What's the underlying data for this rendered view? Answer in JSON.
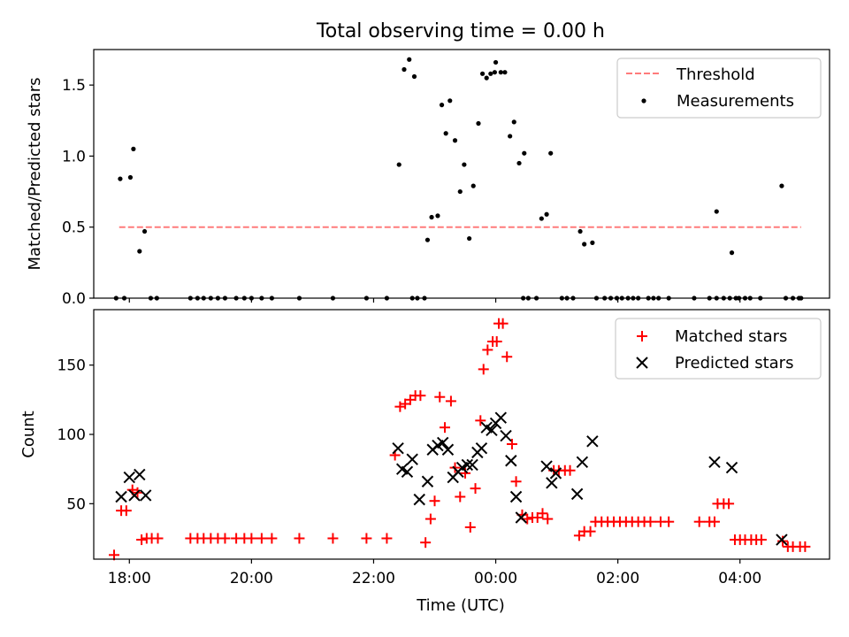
{
  "figure": {
    "title": "Total observing time = 0.00 h"
  },
  "chart_data": [
    {
      "type": "scatter",
      "ylabel": "Matched/Predicted stars",
      "xlabel": "",
      "xlim": [
        "17:25",
        "05:28"
      ],
      "ylim": [
        0,
        1.75
      ],
      "yticks": [
        0,
        0.5,
        1.0,
        1.5
      ],
      "ytick_labels": [
        "0.0",
        "0.5",
        "1.0",
        "1.5"
      ],
      "legend": {
        "position": "upper right",
        "entries": [
          "Threshold",
          "Measurements"
        ]
      },
      "threshold": {
        "name": "Threshold",
        "value": 0.5,
        "x_start": "17:50",
        "x_end": "05:00",
        "color": "#ff7b7b",
        "style": "dashed"
      },
      "series": [
        {
          "name": "Measurements",
          "color": "#000000",
          "marker": "dot",
          "points": [
            [
              "17:47",
              0
            ],
            [
              "17:51",
              0.84
            ],
            [
              "17:55",
              0
            ],
            [
              "18:01",
              0.85
            ],
            [
              "18:04",
              1.05
            ],
            [
              "18:10",
              0.33
            ],
            [
              "18:15",
              0.47
            ],
            [
              "18:21",
              0
            ],
            [
              "18:27",
              0
            ],
            [
              "19:00",
              0
            ],
            [
              "19:07",
              0
            ],
            [
              "19:13",
              0
            ],
            [
              "19:20",
              0
            ],
            [
              "19:27",
              0
            ],
            [
              "19:34",
              0
            ],
            [
              "19:45",
              0
            ],
            [
              "19:53",
              0
            ],
            [
              "20:00",
              0
            ],
            [
              "20:10",
              0
            ],
            [
              "20:20",
              0
            ],
            [
              "20:47",
              0
            ],
            [
              "21:20",
              0
            ],
            [
              "21:53",
              0
            ],
            [
              "22:13",
              0
            ],
            [
              "22:25",
              0.94
            ],
            [
              "22:30",
              1.61
            ],
            [
              "22:35",
              1.68
            ],
            [
              "22:40",
              1.56
            ],
            [
              "22:38",
              0
            ],
            [
              "22:43",
              0
            ],
            [
              "22:50",
              0
            ],
            [
              "22:53",
              0.41
            ],
            [
              "22:57",
              0.57
            ],
            [
              "23:03",
              0.58
            ],
            [
              "23:07",
              1.36
            ],
            [
              "23:11",
              1.16
            ],
            [
              "23:15",
              1.39
            ],
            [
              "23:20",
              1.11
            ],
            [
              "23:25",
              0.75
            ],
            [
              "23:29",
              0.94
            ],
            [
              "23:34",
              0.42
            ],
            [
              "23:38",
              0.79
            ],
            [
              "23:43",
              1.23
            ],
            [
              "23:47",
              1.58
            ],
            [
              "23:51",
              1.55
            ],
            [
              "23:55",
              1.58
            ],
            [
              "23:59",
              1.59
            ],
            [
              "00:00",
              1.66
            ],
            [
              "00:05",
              1.59
            ],
            [
              "00:09",
              1.59
            ],
            [
              "00:14",
              1.14
            ],
            [
              "00:18",
              1.24
            ],
            [
              "00:23",
              0.95
            ],
            [
              "00:28",
              1.02
            ],
            [
              "00:27",
              0
            ],
            [
              "00:32",
              0
            ],
            [
              "00:40",
              0
            ],
            [
              "00:45",
              0.56
            ],
            [
              "00:50",
              0.59
            ],
            [
              "00:54",
              1.02
            ],
            [
              "01:05",
              0
            ],
            [
              "01:10",
              0
            ],
            [
              "01:16",
              0
            ],
            [
              "01:23",
              0.47
            ],
            [
              "01:27",
              0.38
            ],
            [
              "01:35",
              0.39
            ],
            [
              "01:39",
              0
            ],
            [
              "01:47",
              0
            ],
            [
              "01:53",
              0
            ],
            [
              "01:59",
              0
            ],
            [
              "02:04",
              0
            ],
            [
              "02:10",
              0
            ],
            [
              "02:15",
              0
            ],
            [
              "02:20",
              0
            ],
            [
              "02:30",
              0
            ],
            [
              "02:35",
              0
            ],
            [
              "02:40",
              0
            ],
            [
              "02:50",
              0
            ],
            [
              "03:15",
              0
            ],
            [
              "03:30",
              0
            ],
            [
              "03:37",
              0
            ],
            [
              "03:44",
              0
            ],
            [
              "03:50",
              0
            ],
            [
              "03:56",
              0
            ],
            [
              "03:59",
              0
            ],
            [
              "04:05",
              0
            ],
            [
              "04:10",
              0
            ],
            [
              "04:20",
              0
            ],
            [
              "03:37",
              0.61
            ],
            [
              "03:52",
              0.32
            ],
            [
              "04:45",
              0
            ],
            [
              "04:52",
              0
            ],
            [
              "04:58",
              0
            ],
            [
              "05:00",
              0
            ],
            [
              "04:41",
              0.79
            ]
          ]
        }
      ]
    },
    {
      "type": "scatter",
      "ylabel": "Count",
      "xlabel": "Time (UTC)",
      "xlim": [
        "17:25",
        "05:28"
      ],
      "ylim": [
        10,
        190
      ],
      "yticks": [
        50,
        100,
        150
      ],
      "xticks": [
        "18:00",
        "20:00",
        "22:00",
        "00:00",
        "02:00",
        "04:00"
      ],
      "legend": {
        "position": "upper right",
        "entries": [
          "Matched stars",
          "Predicted stars"
        ]
      },
      "series": [
        {
          "name": "Matched stars",
          "color": "#ff0000",
          "marker": "plus",
          "points": [
            [
              "17:45",
              13
            ],
            [
              "17:52",
              45
            ],
            [
              "17:57",
              45
            ],
            [
              "18:03",
              60
            ],
            [
              "18:08",
              58
            ],
            [
              "18:12",
              24
            ],
            [
              "18:17",
              25
            ],
            [
              "18:22",
              25
            ],
            [
              "18:28",
              25
            ],
            [
              "19:00",
              25
            ],
            [
              "19:07",
              25
            ],
            [
              "19:13",
              25
            ],
            [
              "19:20",
              25
            ],
            [
              "19:27",
              25
            ],
            [
              "19:34",
              25
            ],
            [
              "19:45",
              25
            ],
            [
              "19:53",
              25
            ],
            [
              "20:00",
              25
            ],
            [
              "20:10",
              25
            ],
            [
              "20:20",
              25
            ],
            [
              "20:47",
              25
            ],
            [
              "21:20",
              25
            ],
            [
              "21:53",
              25
            ],
            [
              "22:13",
              25
            ],
            [
              "22:21",
              85
            ],
            [
              "22:26",
              120
            ],
            [
              "22:31",
              122
            ],
            [
              "22:36",
              125
            ],
            [
              "22:41",
              128
            ],
            [
              "22:46",
              128
            ],
            [
              "22:51",
              22
            ],
            [
              "22:56",
              39
            ],
            [
              "23:00",
              52
            ],
            [
              "23:05",
              127
            ],
            [
              "23:10",
              105
            ],
            [
              "23:16",
              124
            ],
            [
              "23:20",
              76
            ],
            [
              "23:25",
              55
            ],
            [
              "23:30",
              72
            ],
            [
              "23:35",
              33
            ],
            [
              "23:40",
              61
            ],
            [
              "23:45",
              110
            ],
            [
              "23:48",
              147
            ],
            [
              "23:52",
              161
            ],
            [
              "23:57",
              167
            ],
            [
              "00:01",
              167
            ],
            [
              "00:03",
              180
            ],
            [
              "00:07",
              180
            ],
            [
              "00:11",
              156
            ],
            [
              "00:16",
              93
            ],
            [
              "00:20",
              66
            ],
            [
              "00:26",
              42
            ],
            [
              "00:31",
              39
            ],
            [
              "00:36",
              40
            ],
            [
              "00:41",
              40
            ],
            [
              "00:46",
              43
            ],
            [
              "00:51",
              39
            ],
            [
              "00:57",
              74
            ],
            [
              "01:02",
              74
            ],
            [
              "01:08",
              74
            ],
            [
              "01:13",
              74
            ],
            [
              "01:22",
              27
            ],
            [
              "01:27",
              30
            ],
            [
              "01:33",
              30
            ],
            [
              "01:38",
              37
            ],
            [
              "01:44",
              37
            ],
            [
              "01:50",
              37
            ],
            [
              "01:56",
              37
            ],
            [
              "02:02",
              37
            ],
            [
              "02:08",
              37
            ],
            [
              "02:14",
              37
            ],
            [
              "02:20",
              37
            ],
            [
              "02:26",
              37
            ],
            [
              "02:32",
              37
            ],
            [
              "02:42",
              37
            ],
            [
              "02:50",
              37
            ],
            [
              "03:20",
              37
            ],
            [
              "03:30",
              37
            ],
            [
              "03:35",
              37
            ],
            [
              "03:38",
              50
            ],
            [
              "03:44",
              50
            ],
            [
              "03:49",
              50
            ],
            [
              "03:55",
              24
            ],
            [
              "04:00",
              24
            ],
            [
              "04:05",
              24
            ],
            [
              "04:11",
              24
            ],
            [
              "04:16",
              24
            ],
            [
              "04:21",
              24
            ],
            [
              "04:42",
              23
            ],
            [
              "04:47",
              19
            ],
            [
              "04:52",
              19
            ],
            [
              "04:59",
              19
            ],
            [
              "05:04",
              19
            ]
          ]
        },
        {
          "name": "Predicted stars",
          "color": "#000000",
          "marker": "x",
          "points": [
            [
              "17:52",
              55
            ],
            [
              "18:00",
              69
            ],
            [
              "18:05",
              56
            ],
            [
              "18:10",
              71
            ],
            [
              "18:16",
              56
            ],
            [
              "22:24",
              90
            ],
            [
              "22:28",
              75
            ],
            [
              "22:33",
              73
            ],
            [
              "22:38",
              82
            ],
            [
              "22:45",
              53
            ],
            [
              "22:53",
              66
            ],
            [
              "22:58",
              89
            ],
            [
              "23:03",
              92
            ],
            [
              "23:08",
              94
            ],
            [
              "23:13",
              89
            ],
            [
              "23:18",
              69
            ],
            [
              "23:23",
              73
            ],
            [
              "23:27",
              76
            ],
            [
              "23:32",
              78
            ],
            [
              "23:37",
              78
            ],
            [
              "23:42",
              87
            ],
            [
              "23:46",
              90
            ],
            [
              "23:51",
              105
            ],
            [
              "23:56",
              103
            ],
            [
              "00:00",
              108
            ],
            [
              "00:05",
              112
            ],
            [
              "00:10",
              99
            ],
            [
              "00:15",
              81
            ],
            [
              "00:20",
              55
            ],
            [
              "00:25",
              40
            ],
            [
              "00:50",
              77
            ],
            [
              "00:55",
              65
            ],
            [
              "00:59",
              72
            ],
            [
              "01:20",
              57
            ],
            [
              "01:25",
              80
            ],
            [
              "01:35",
              95
            ],
            [
              "03:35",
              80
            ],
            [
              "03:52",
              76
            ],
            [
              "04:41",
              24
            ]
          ]
        }
      ]
    }
  ]
}
